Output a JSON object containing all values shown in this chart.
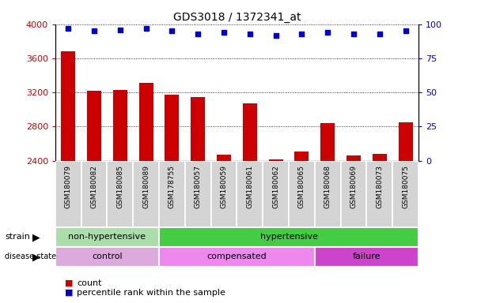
{
  "title": "GDS3018 / 1372341_at",
  "samples": [
    "GSM180079",
    "GSM180082",
    "GSM180085",
    "GSM180089",
    "GSM178755",
    "GSM180057",
    "GSM180059",
    "GSM180061",
    "GSM180062",
    "GSM180065",
    "GSM180068",
    "GSM180069",
    "GSM180073",
    "GSM180075"
  ],
  "counts": [
    3680,
    3220,
    3230,
    3310,
    3175,
    3150,
    2470,
    3070,
    2410,
    2510,
    2840,
    2465,
    2480,
    2850
  ],
  "percentile_ranks": [
    97,
    95,
    96,
    97,
    95,
    93,
    94,
    93,
    92,
    93,
    94,
    93,
    93,
    95
  ],
  "ylim_left": [
    2400,
    4000
  ],
  "ylim_right": [
    0,
    100
  ],
  "yticks_left": [
    2400,
    2800,
    3200,
    3600,
    4000
  ],
  "yticks_right": [
    0,
    25,
    50,
    75,
    100
  ],
  "bar_color": "#cc0000",
  "dot_color": "#0000cc",
  "bar_bottom": 2400,
  "strain_groups": [
    {
      "label": "non-hypertensive",
      "start": 0,
      "end": 4,
      "color": "#aaddaa"
    },
    {
      "label": "hypertensive",
      "start": 4,
      "end": 14,
      "color": "#44cc44"
    }
  ],
  "disease_groups": [
    {
      "label": "control",
      "start": 0,
      "end": 4,
      "color": "#ddaadd"
    },
    {
      "label": "compensated",
      "start": 4,
      "end": 10,
      "color": "#ee88ee"
    },
    {
      "label": "failure",
      "start": 10,
      "end": 14,
      "color": "#cc44cc"
    }
  ],
  "plot_bg_color": "#ffffff",
  "tick_label_area_color": "#d0d0d0"
}
